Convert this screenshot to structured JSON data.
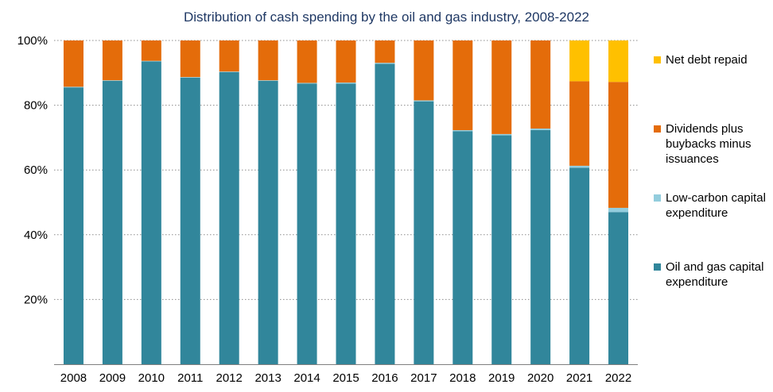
{
  "chart_data": {
    "type": "bar",
    "stacked": true,
    "title": "Distribution of cash spending by the oil and gas industry, 2008-2022",
    "xlabel": "",
    "ylabel": "",
    "ylim": [
      0,
      100
    ],
    "yticks": [
      "20%",
      "40%",
      "60%",
      "80%",
      "100%"
    ],
    "grid": "horizontal dotted",
    "legend_position": "right",
    "categories": [
      "2008",
      "2009",
      "2010",
      "2011",
      "2012",
      "2013",
      "2014",
      "2015",
      "2016",
      "2017",
      "2018",
      "2019",
      "2020",
      "2021",
      "2022"
    ],
    "series": [
      {
        "name": "Oil and gas capital expenditure",
        "color": "#31869b",
        "values": [
          85.5,
          87.5,
          93.5,
          88.5,
          90.2,
          87.5,
          86.7,
          86.7,
          92.8,
          81.2,
          72.0,
          70.7,
          72.3,
          60.7,
          47.0
        ]
      },
      {
        "name": "Low-carbon capital expenditure",
        "color": "#93cddd",
        "values": [
          0.2,
          0.2,
          0.2,
          0.2,
          0.2,
          0.2,
          0.2,
          0.3,
          0.3,
          0.3,
          0.3,
          0.4,
          0.5,
          0.6,
          1.3
        ]
      },
      {
        "name": "Dividends plus buybacks minus issuances",
        "color": "#e46c0a",
        "values": [
          14.3,
          12.3,
          6.3,
          11.3,
          9.6,
          12.3,
          13.1,
          13.0,
          6.9,
          18.5,
          27.7,
          28.9,
          27.2,
          26.1,
          38.9
        ]
      },
      {
        "name": "Net debt repaid",
        "color": "#ffc000",
        "values": [
          0,
          0,
          0,
          0,
          0,
          0,
          0,
          0,
          0,
          0,
          0,
          0,
          0,
          12.6,
          12.8
        ]
      }
    ]
  },
  "legend": [
    {
      "label": "Net debt repaid",
      "color": "#ffc000"
    },
    {
      "label": "Dividends plus buybacks minus issuances",
      "color": "#e46c0a"
    },
    {
      "label": "Low-carbon capital expenditure",
      "color": "#93cddd"
    },
    {
      "label": "Oil and gas capital expenditure",
      "color": "#31869b"
    }
  ],
  "colors": {
    "title": "#1f3864",
    "axis_text": "#000000",
    "gridline": "#8c8c8c"
  }
}
